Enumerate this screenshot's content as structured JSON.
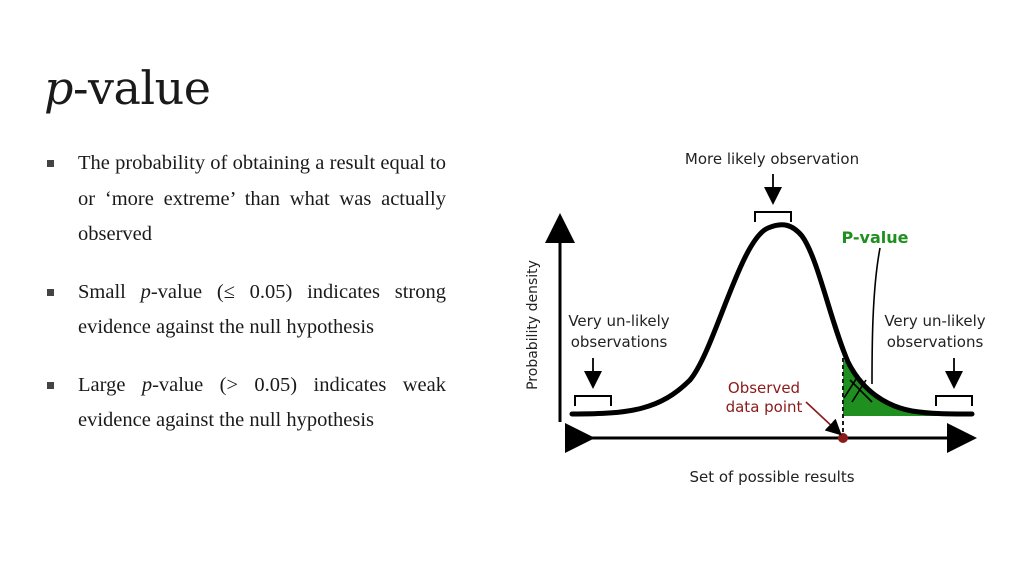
{
  "slide": {
    "title_italic": "p",
    "title_rest": "-value"
  },
  "bullets": [
    {
      "text": "The probability of obtaining a result equal to or ‘more extreme’ than what was actually observed"
    },
    {
      "pre": "Small ",
      "italic": "p",
      "post": "-value (≤ 0.05) indicates strong evidence against the null hypothesis"
    },
    {
      "pre": "Large ",
      "italic": "p",
      "post": "-value (> 0.05) indicates weak evidence against the null hypothesis"
    }
  ],
  "figure": {
    "top_label": "More likely observation",
    "pvalue_label": "P-value",
    "y_axis_label": "Probability density",
    "left_label_line1": "Very un-likely",
    "left_label_line2": "observations",
    "right_label_line1": "Very un-likely",
    "right_label_line2": "observations",
    "observed_line1": "Observed",
    "observed_line2": "data point",
    "x_axis_label": "Set of possible results",
    "colors": {
      "curve": "#000000",
      "shade": "#1f8f1f",
      "pvalue_text": "#1f8f1f",
      "observed": "#8b1a1a"
    }
  }
}
